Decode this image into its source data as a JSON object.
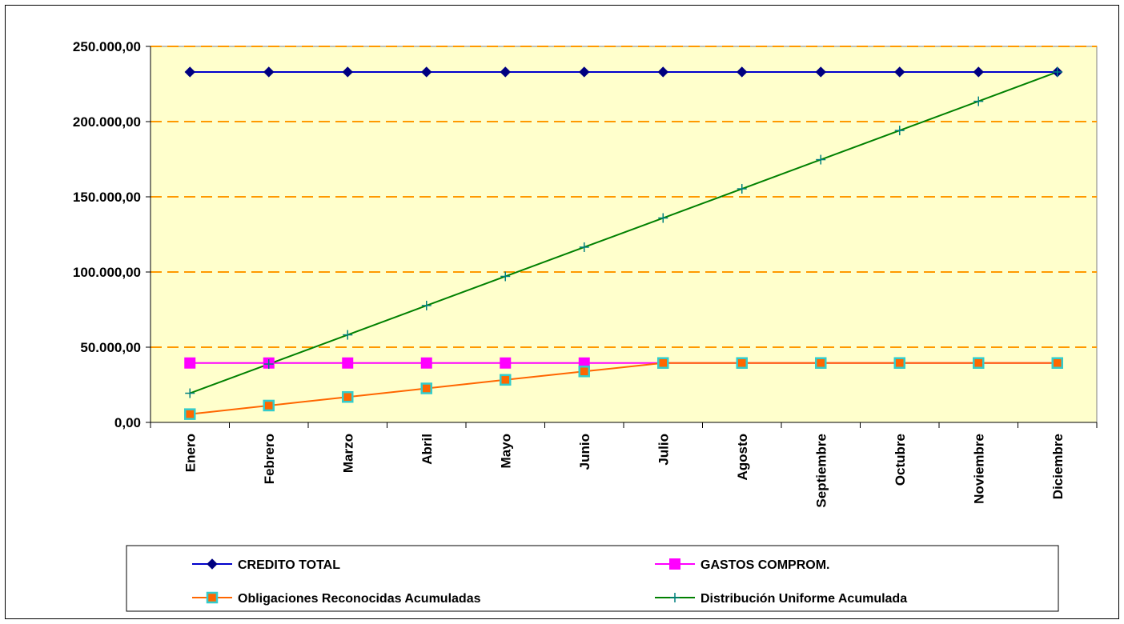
{
  "chart_data": {
    "type": "line",
    "categories": [
      "Enero",
      "Febrero",
      "Marzo",
      "Abril",
      "Mayo",
      "Junio",
      "Julio",
      "Agosto",
      "Septiembre",
      "Octubre",
      "Noviembre",
      "Diciembre"
    ],
    "y_tick_labels": [
      "0,00",
      "50.000,00",
      "100.000,00",
      "150.000,00",
      "200.000,00",
      "250.000,00"
    ],
    "ylim": [
      0,
      250000
    ],
    "grid": "horizontal dashed",
    "legend_position": "bottom",
    "series": [
      {
        "name": "CREDITO TOTAL",
        "color": "#0000CC",
        "marker": "diamond",
        "values": [
          233000,
          233000,
          233000,
          233000,
          233000,
          233000,
          233000,
          233000,
          233000,
          233000,
          233000,
          233000
        ]
      },
      {
        "name": "GASTOS COMPROM.",
        "color": "#FF00FF",
        "marker": "square",
        "values": [
          39500,
          39500,
          39500,
          39500,
          39500,
          39500,
          39500,
          39500,
          39500,
          39500,
          39500,
          39500
        ]
      },
      {
        "name": "Obligaciones Reconocidas Acumuladas",
        "color": "#FF6600",
        "marker": "square-cyan-border",
        "values": [
          5500,
          11200,
          16900,
          22600,
          28300,
          33900,
          39500,
          39500,
          39500,
          39500,
          39500,
          39500
        ]
      },
      {
        "name": "Distribución Uniforme Acumulada",
        "color": "#008000",
        "marker": "plus",
        "values": [
          19400,
          38800,
          58200,
          77700,
          97100,
          116500,
          135900,
          155300,
          174700,
          194100,
          213500,
          233000
        ]
      }
    ],
    "colors": {
      "plot_background": "#FFFFCC",
      "gridline": "#FF9900"
    }
  }
}
